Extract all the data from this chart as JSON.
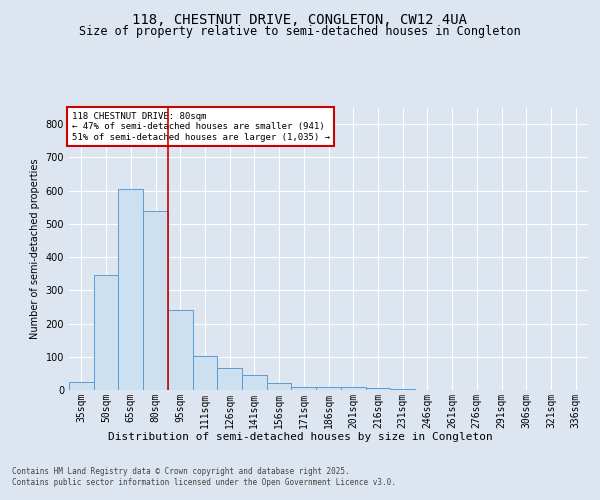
{
  "title": "118, CHESTNUT DRIVE, CONGLETON, CW12 4UA",
  "subtitle": "Size of property relative to semi-detached houses in Congleton",
  "xlabel": "Distribution of semi-detached houses by size in Congleton",
  "ylabel": "Number of semi-detached properties",
  "categories": [
    "35sqm",
    "50sqm",
    "65sqm",
    "80sqm",
    "95sqm",
    "111sqm",
    "126sqm",
    "141sqm",
    "156sqm",
    "171sqm",
    "186sqm",
    "201sqm",
    "216sqm",
    "231sqm",
    "246sqm",
    "261sqm",
    "276sqm",
    "291sqm",
    "306sqm",
    "321sqm",
    "336sqm"
  ],
  "values": [
    25,
    345,
    605,
    540,
    240,
    103,
    65,
    45,
    20,
    10,
    8,
    8,
    5,
    3,
    1,
    1,
    0,
    1,
    0,
    0,
    1
  ],
  "bar_color": "#cce0f0",
  "bar_edge_color": "#5b9bd5",
  "highlight_index": 3,
  "highlight_line_color": "#cc0000",
  "annotation_text": "118 CHESTNUT DRIVE: 80sqm\n← 47% of semi-detached houses are smaller (941)\n51% of semi-detached houses are larger (1,035) →",
  "annotation_box_color": "#cc0000",
  "background_color": "#dde6f0",
  "plot_background_color": "#dde6f0",
  "grid_color": "#ffffff",
  "footer_text": "Contains HM Land Registry data © Crown copyright and database right 2025.\nContains public sector information licensed under the Open Government Licence v3.0.",
  "ylim": [
    0,
    850
  ],
  "yticks": [
    0,
    100,
    200,
    300,
    400,
    500,
    600,
    700,
    800
  ],
  "title_fontsize": 10,
  "subtitle_fontsize": 8.5,
  "xlabel_fontsize": 8,
  "ylabel_fontsize": 7,
  "tick_fontsize": 7,
  "annotation_fontsize": 6.5,
  "footer_fontsize": 5.5
}
